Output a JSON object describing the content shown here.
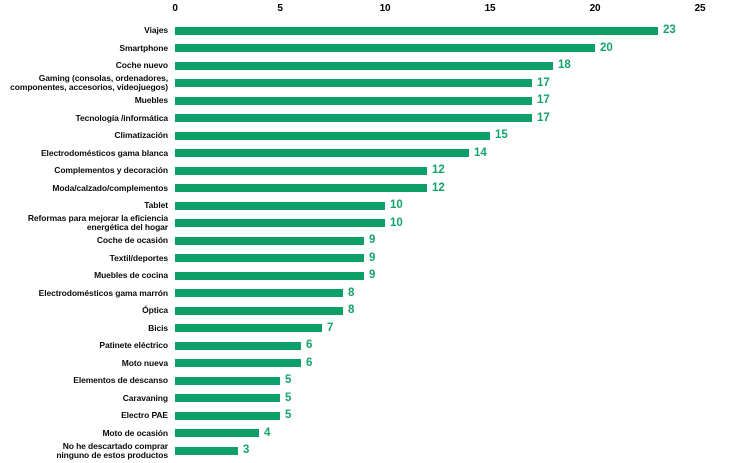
{
  "chart_data": {
    "type": "bar",
    "orientation": "horizontal",
    "title": "",
    "xlabel": "",
    "ylabel": "",
    "xlim": [
      0,
      25
    ],
    "x_ticks": [
      "0",
      "5",
      "10",
      "15",
      "20",
      "25"
    ],
    "grid": false,
    "legend": false,
    "bar_color": "#0d9f68",
    "value_label_color": "#14a46a",
    "axis_tick_color": "#000000",
    "categories": [
      "Viajes",
      "Smartphone",
      "Coche nuevo",
      "Gaming (consolas, ordenadores,\ncomponentes, accesorios, videojuegos)",
      "Muebles",
      "Tecnología /informática",
      "Climatización",
      "Electrodomésticos gama blanca",
      "Complementos y decoración",
      "Moda/calzado/complementos",
      "Tablet",
      "Reformas para mejorar la eficiencia\nenergética del hogar",
      "Coche de ocasión",
      "Textil/deportes",
      "Muebles de cocina",
      "Electrodomésticos gama marrón",
      "Óptica",
      "Bicis",
      "Patinete eléctrico",
      "Moto nueva",
      "Elementos de descanso",
      "Caravaning",
      "Electro PAE",
      "Moto de ocasión",
      "No he descartado comprar\nninguno de estos productos"
    ],
    "values": [
      23,
      20,
      18,
      17,
      17,
      17,
      15,
      14,
      12,
      12,
      10,
      10,
      9,
      9,
      9,
      8,
      8,
      7,
      6,
      6,
      5,
      5,
      5,
      4,
      3
    ]
  }
}
